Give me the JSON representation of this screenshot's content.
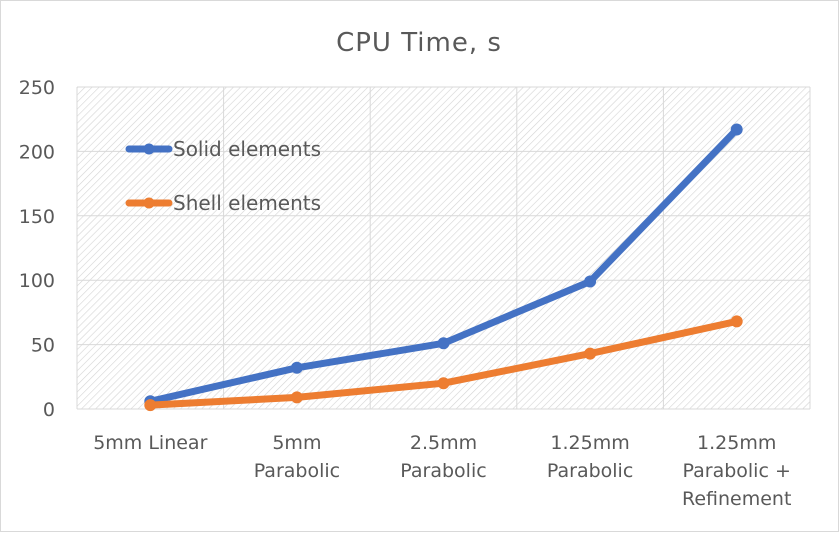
{
  "chart_data": {
    "type": "line",
    "title": "CPU Time, s",
    "xlabel": "",
    "ylabel": "",
    "categories": [
      [
        "5mm Linear"
      ],
      [
        "5mm",
        "Parabolic"
      ],
      [
        "2.5mm",
        "Parabolic"
      ],
      [
        "1.25mm",
        "Parabolic"
      ],
      [
        "1.25mm",
        "Parabolic +",
        "Refinement"
      ]
    ],
    "yticks": [
      "0",
      "50",
      "100",
      "150",
      "200",
      "250"
    ],
    "ylim": [
      0,
      250
    ],
    "grid": true,
    "legend_position": "top-left",
    "series": [
      {
        "name": "Solid elements",
        "color": "#4472C4",
        "values": [
          6,
          32,
          51,
          99,
          217
        ]
      },
      {
        "name": "Shell elements",
        "color": "#ED7D31",
        "values": [
          3,
          9,
          20,
          43,
          68
        ]
      }
    ]
  }
}
